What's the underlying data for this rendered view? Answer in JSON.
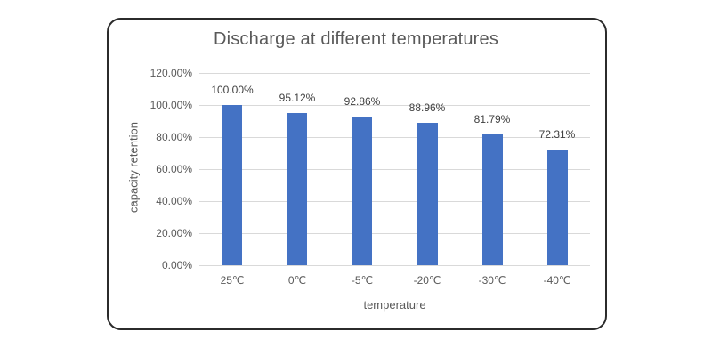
{
  "chart_data": {
    "type": "bar",
    "title": "Discharge at different temperatures",
    "xlabel": "temperature",
    "ylabel": "capacity retention",
    "categories": [
      "25℃",
      "0℃",
      "-5℃",
      "-20℃",
      "-30℃",
      "-40℃"
    ],
    "values": [
      100.0,
      95.12,
      92.86,
      88.96,
      81.79,
      72.31
    ],
    "data_labels": [
      "100.00%",
      "95.12%",
      "92.86%",
      "88.96%",
      "81.79%",
      "72.31%"
    ],
    "ylim": [
      0,
      120
    ],
    "yticks": [
      "0.00%",
      "20.00%",
      "40.00%",
      "60.00%",
      "80.00%",
      "100.00%",
      "120.00%"
    ],
    "grid": true,
    "legend": false,
    "bar_color": "#4472c4"
  }
}
